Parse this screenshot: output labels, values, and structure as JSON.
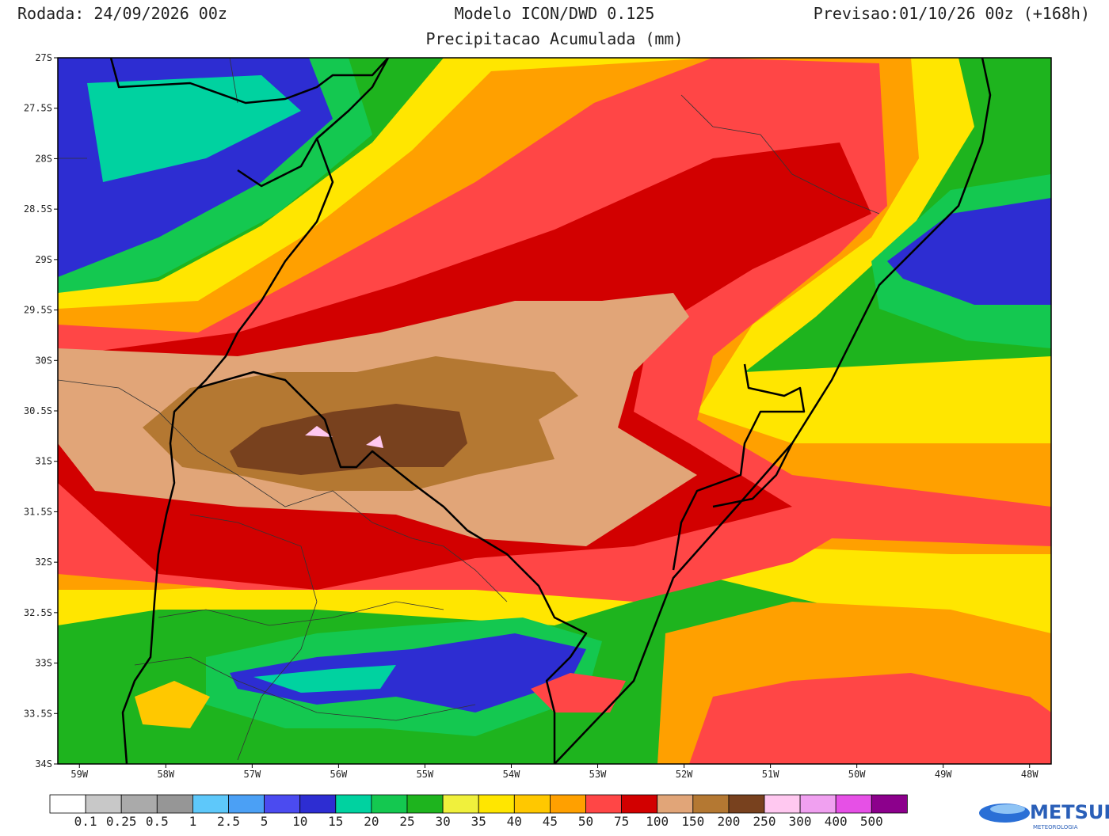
{
  "header": {
    "run": "Rodada: 24/09/2026 00z",
    "model": "Modelo ICON/DWD 0.125",
    "forecast": "Previsao:01/10/26 00z (+168h)",
    "title": "Precipitacao Acumulada (mm)"
  },
  "map": {
    "xlim": [
      -59.25,
      -47.75
    ],
    "ylim": [
      -34,
      -27
    ],
    "xticks": [
      {
        "value": -59,
        "label": "59W"
      },
      {
        "value": -58,
        "label": "58W"
      },
      {
        "value": -57,
        "label": "57W"
      },
      {
        "value": -56,
        "label": "56W"
      },
      {
        "value": -55,
        "label": "55W"
      },
      {
        "value": -54,
        "label": "54W"
      },
      {
        "value": -53,
        "label": "53W"
      },
      {
        "value": -52,
        "label": "52W"
      },
      {
        "value": -51,
        "label": "51W"
      },
      {
        "value": -50,
        "label": "50W"
      },
      {
        "value": -49,
        "label": "49W"
      },
      {
        "value": -48,
        "label": "48W"
      }
    ],
    "yticks": [
      {
        "value": -27,
        "label": "27S"
      },
      {
        "value": -27.5,
        "label": "27.5S"
      },
      {
        "value": -28,
        "label": "28S"
      },
      {
        "value": -28.5,
        "label": "28.5S"
      },
      {
        "value": -29,
        "label": "29S"
      },
      {
        "value": -29.5,
        "label": "29.5S"
      },
      {
        "value": -30,
        "label": "30S"
      },
      {
        "value": -30.5,
        "label": "30.5S"
      },
      {
        "value": -31,
        "label": "31S"
      },
      {
        "value": -31.5,
        "label": "31.5S"
      },
      {
        "value": -32,
        "label": "32S"
      },
      {
        "value": -32.5,
        "label": "32.5S"
      },
      {
        "value": -33,
        "label": "33S"
      },
      {
        "value": -33.5,
        "label": "33.5S"
      },
      {
        "value": -34,
        "label": "34S"
      }
    ]
  },
  "colorbar": {
    "colors": [
      "#ffffff",
      "#c8c8c8",
      "#aaaaaa",
      "#969696",
      "#5ec8fa",
      "#4ba0f5",
      "#4b4bf0",
      "#2d2dd2",
      "#00d2a0",
      "#14c850",
      "#1eb41e",
      "#f0f03c",
      "#ffe600",
      "#ffc800",
      "#ffa000",
      "#ff4646",
      "#d20000",
      "#e1a578",
      "#b47832",
      "#78411e",
      "#ffc8f0",
      "#f0a0f0",
      "#e650e6",
      "#8c008c"
    ],
    "labels": [
      0.1,
      0.25,
      0.5,
      1,
      2.5,
      5,
      10,
      15,
      20,
      25,
      30,
      35,
      40,
      45,
      50,
      75,
      100,
      150,
      200,
      250,
      300,
      400,
      500
    ]
  },
  "logo": {
    "name": "METSUL",
    "tagline": "METEOROLOGIA"
  }
}
